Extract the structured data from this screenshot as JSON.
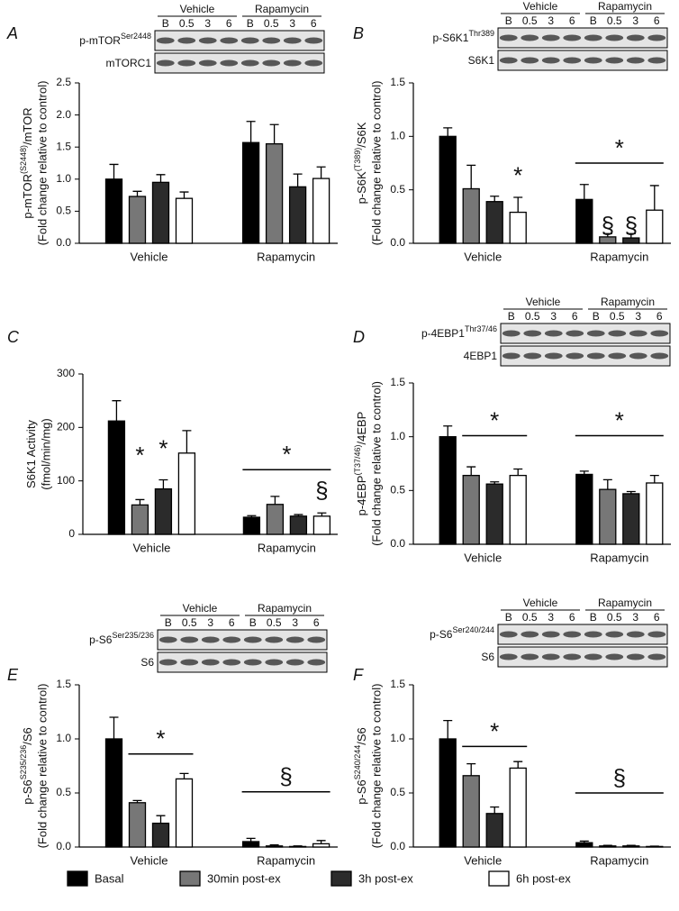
{
  "chart_data": [
    {
      "type": "bar",
      "panel": "A",
      "ylabel": {
        "main": "p-mTOR",
        "sup": "(S2448)",
        "tail": "/mTOR"
      },
      "ylabel2": "(Fold change relative to control)",
      "categories": [
        "Vehicle",
        "Rapamycin"
      ],
      "ylim": [
        0,
        2.5
      ],
      "yticks": [
        {
          "value": 0,
          "label": "0.0"
        },
        0.5,
        {
          "value": 1,
          "label": "1.0"
        },
        1.5,
        {
          "value": 2,
          "label": "2.0"
        },
        2.5
      ],
      "series": [
        {
          "name": "Basal",
          "color": "#000000",
          "values": [
            1.0,
            1.57
          ],
          "errors": [
            0.23,
            0.33
          ]
        },
        {
          "name": "30min post-ex",
          "color": "#777777",
          "values": [
            0.73,
            1.55
          ],
          "errors": [
            0.08,
            0.3
          ]
        },
        {
          "name": "3h post-ex",
          "color": "#2b2b2b",
          "values": [
            0.95,
            0.88
          ],
          "errors": [
            0.12,
            0.2
          ]
        },
        {
          "name": "6h post-ex",
          "color": "#ffffff",
          "values": [
            0.7,
            1.01
          ],
          "errors": [
            0.1,
            0.18
          ]
        }
      ],
      "blot": {
        "groups": [
          "Vehicle",
          "Rapamycin"
        ],
        "lanes": [
          "B",
          "0.5",
          "3",
          "6"
        ],
        "rows": [
          {
            "label": "p-mTOR",
            "sup": "Ser2448"
          },
          {
            "label": "mTORC1"
          }
        ]
      },
      "annotations": []
    },
    {
      "type": "bar",
      "panel": "B",
      "ylabel": {
        "main": "p-S6K",
        "sup": "(T389)",
        "tail": "/S6K"
      },
      "ylabel2": "(Fold change relative to control)",
      "categories": [
        "Vehicle",
        "Rapamycin"
      ],
      "ylim": [
        0,
        1.5
      ],
      "yticks": [
        {
          "value": 0,
          "label": "0.0"
        },
        0.5,
        {
          "value": 1,
          "label": "1.0"
        },
        1.5
      ],
      "series": [
        {
          "color": "#000000",
          "values": [
            1.0,
            0.41
          ],
          "errors": [
            0.08,
            0.14
          ]
        },
        {
          "color": "#777777",
          "values": [
            0.51,
            0.06
          ],
          "errors": [
            0.22,
            0.03
          ]
        },
        {
          "color": "#2b2b2b",
          "values": [
            0.39,
            0.05
          ],
          "errors": [
            0.05,
            0.04
          ]
        },
        {
          "color": "#ffffff",
          "values": [
            0.29,
            0.31
          ],
          "errors": [
            0.14,
            0.23
          ]
        }
      ],
      "blot": {
        "groups": [
          "Vehicle",
          "Rapamycin"
        ],
        "lanes": [
          "B",
          "0.5",
          "3",
          "6"
        ],
        "rows": [
          {
            "label": "p-S6K1",
            "sup": "Thr389"
          },
          {
            "label": "S6K1"
          }
        ]
      },
      "annotations": [
        "*",
        "*",
        "§",
        "§"
      ]
    },
    {
      "type": "bar",
      "panel": "C",
      "ylabel": {
        "main": "S6K1 Activity"
      },
      "ylabel2": "(fmol/min/mg)",
      "categories": [
        "Vehicle",
        "Rapamycin"
      ],
      "ylim": [
        0,
        300
      ],
      "yticks": [
        0,
        100,
        200,
        300
      ],
      "series": [
        {
          "color": "#000000",
          "values": [
            212,
            32
          ],
          "errors": [
            38,
            3
          ]
        },
        {
          "color": "#777777",
          "values": [
            55,
            56
          ],
          "errors": [
            10,
            15
          ]
        },
        {
          "color": "#2b2b2b",
          "values": [
            85,
            34
          ],
          "errors": [
            17,
            3
          ]
        },
        {
          "color": "#ffffff",
          "values": [
            152,
            34
          ],
          "errors": [
            42,
            6
          ]
        }
      ],
      "annotations": [
        "*",
        "*",
        "*",
        "§"
      ]
    },
    {
      "type": "bar",
      "panel": "D",
      "ylabel": {
        "main": "p-4EBP",
        "sup": "(T37/46)",
        "tail": "/4EBP"
      },
      "ylabel2": "(Fold change relative to control)",
      "categories": [
        "Vehicle",
        "Rapamycin"
      ],
      "ylim": [
        0,
        1.5
      ],
      "yticks": [
        {
          "value": 0,
          "label": "0.0"
        },
        0.5,
        {
          "value": 1,
          "label": "1.0"
        },
        1.5
      ],
      "series": [
        {
          "color": "#000000",
          "values": [
            1.0,
            0.65
          ],
          "errors": [
            0.1,
            0.03
          ]
        },
        {
          "color": "#777777",
          "values": [
            0.64,
            0.51
          ],
          "errors": [
            0.08,
            0.09
          ]
        },
        {
          "color": "#2b2b2b",
          "values": [
            0.56,
            0.47
          ],
          "errors": [
            0.02,
            0.02
          ]
        },
        {
          "color": "#ffffff",
          "values": [
            0.64,
            0.57
          ],
          "errors": [
            0.06,
            0.07
          ]
        }
      ],
      "blot": {
        "groups": [
          "Vehicle",
          "Rapamycin"
        ],
        "lanes": [
          "B",
          "0.5",
          "3",
          "6"
        ],
        "rows": [
          {
            "label": "p-4EBP1",
            "sup": "Thr37/46"
          },
          {
            "label": "4EBP1"
          }
        ]
      },
      "annotations": [
        "*",
        "*"
      ]
    },
    {
      "type": "bar",
      "panel": "E",
      "ylabel": {
        "main": "p-S6",
        "sup": "S235/236",
        "tail": "/S6"
      },
      "ylabel2": "(Fold change relative to control)",
      "categories": [
        "Vehicle",
        "Rapamycin"
      ],
      "ylim": [
        0,
        1.5
      ],
      "yticks": [
        {
          "value": 0,
          "label": "0.0"
        },
        0.5,
        {
          "value": 1,
          "label": "1.0"
        },
        1.5
      ],
      "series": [
        {
          "color": "#000000",
          "values": [
            1.0,
            0.05
          ],
          "errors": [
            0.2,
            0.03
          ]
        },
        {
          "color": "#777777",
          "values": [
            0.41,
            0.01
          ],
          "errors": [
            0.02,
            0.01
          ]
        },
        {
          "color": "#2b2b2b",
          "values": [
            0.22,
            0.005
          ],
          "errors": [
            0.07,
            0.005
          ]
        },
        {
          "color": "#ffffff",
          "values": [
            0.63,
            0.03
          ],
          "errors": [
            0.05,
            0.03
          ]
        }
      ],
      "blot": {
        "groups": [
          "Vehicle",
          "Rapamycin"
        ],
        "lanes": [
          "B",
          "0.5",
          "3",
          "6"
        ],
        "rows": [
          {
            "label": "p-S6",
            "sup": "Ser235/236"
          },
          {
            "label": "S6"
          }
        ]
      },
      "annotations": [
        "*",
        "§"
      ]
    },
    {
      "type": "bar",
      "panel": "F",
      "ylabel": {
        "main": "p-S6",
        "sup": "S240/244",
        "tail": "/S6"
      },
      "ylabel2": "(Fold change relative to control)",
      "categories": [
        "Vehicle",
        "Rapamycin"
      ],
      "ylim": [
        0,
        1.5
      ],
      "yticks": [
        {
          "value": 0,
          "label": "0.0"
        },
        0.5,
        {
          "value": 1,
          "label": "1.0"
        },
        1.5
      ],
      "series": [
        {
          "color": "#000000",
          "values": [
            1.0,
            0.04
          ],
          "errors": [
            0.17,
            0.015
          ]
        },
        {
          "color": "#777777",
          "values": [
            0.66,
            0.01
          ],
          "errors": [
            0.11,
            0.005
          ]
        },
        {
          "color": "#2b2b2b",
          "values": [
            0.31,
            0.01
          ],
          "errors": [
            0.06,
            0.005
          ]
        },
        {
          "color": "#ffffff",
          "values": [
            0.73,
            0.005
          ],
          "errors": [
            0.06,
            0.003
          ]
        }
      ],
      "blot": {
        "groups": [
          "Vehicle",
          "Rapamycin"
        ],
        "lanes": [
          "B",
          "0.5",
          "3",
          "6"
        ],
        "rows": [
          {
            "label": "p-S6",
            "sup": "Ser240/244"
          },
          {
            "label": "S6"
          }
        ]
      },
      "annotations": [
        "*",
        "§"
      ]
    }
  ]
}
